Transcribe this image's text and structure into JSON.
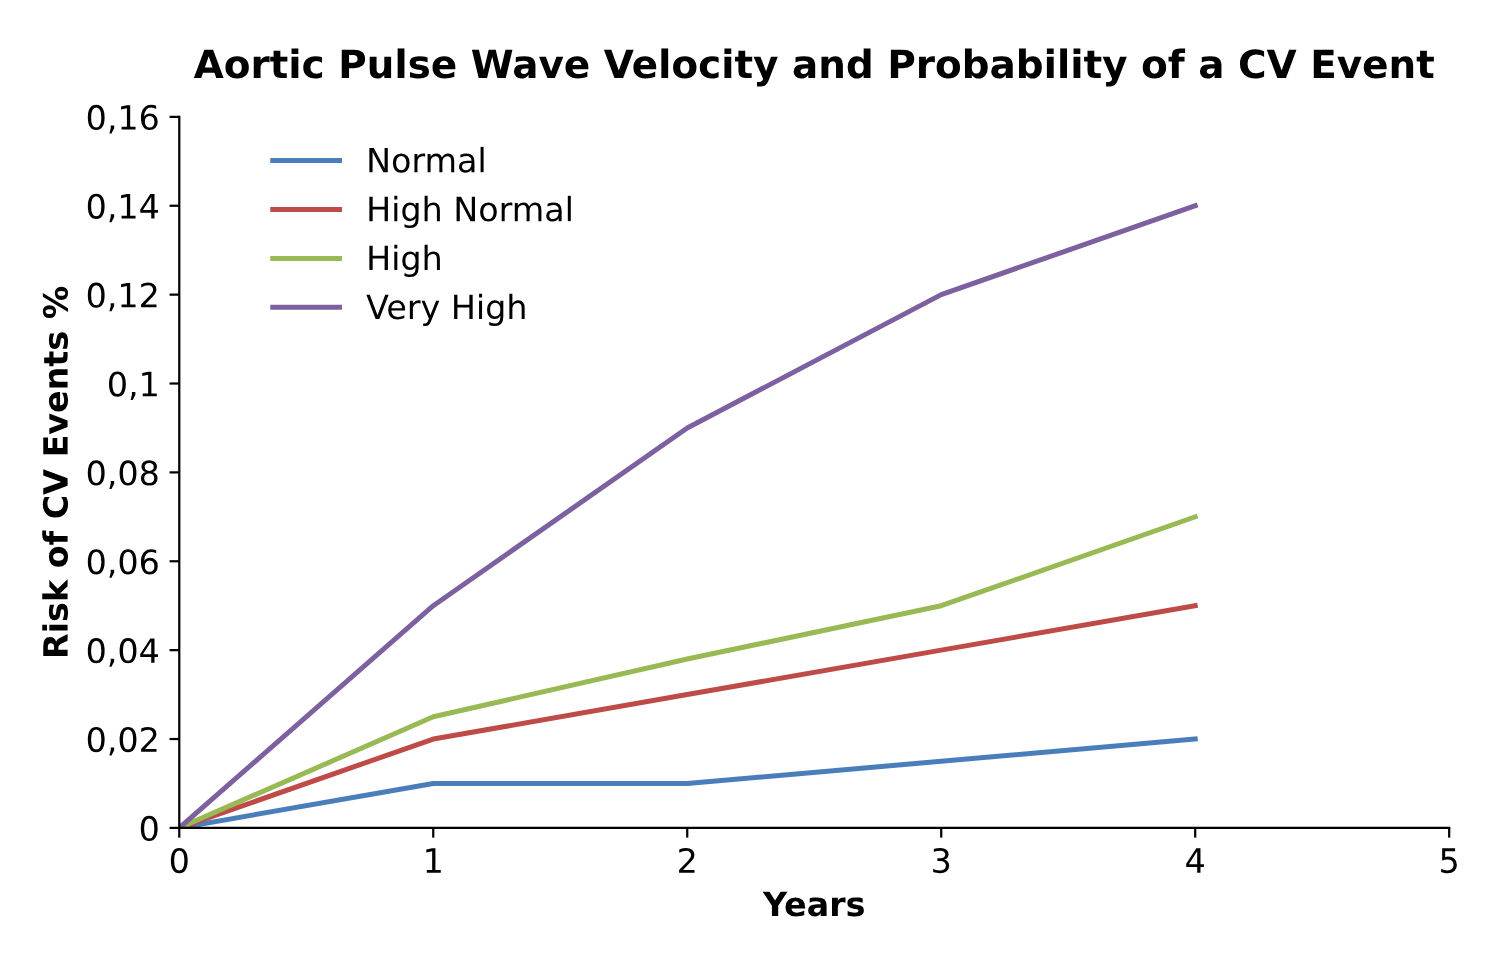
{
  "chart_data": {
    "type": "line",
    "title": "Aortic Pulse Wave Velocity and Probability of a CV Event",
    "xlabel": "Years",
    "ylabel": "Risk of CV Events %",
    "x": [
      0,
      1,
      2,
      3,
      4
    ],
    "series": [
      {
        "name": "Normal",
        "color": "#4a7ebb",
        "values": [
          0,
          0.01,
          0.01,
          0.015,
          0.02
        ]
      },
      {
        "name": "High Normal",
        "color": "#be4b48",
        "values": [
          0,
          0.02,
          0.03,
          0.04,
          0.05
        ]
      },
      {
        "name": "High",
        "color": "#98b954",
        "values": [
          0,
          0.025,
          0.038,
          0.05,
          0.07
        ]
      },
      {
        "name": "Very High",
        "color": "#7d60a0",
        "values": [
          0,
          0.05,
          0.09,
          0.12,
          0.14
        ]
      }
    ],
    "xlim": [
      0,
      5
    ],
    "xticks": [
      0,
      1,
      2,
      3,
      4,
      5
    ],
    "ylim": [
      0,
      0.16
    ],
    "yticks": [
      0,
      {
        "value": 0.02,
        "label": "0,02"
      },
      {
        "value": 0.04,
        "label": "0,04"
      },
      {
        "value": 0.06,
        "label": "0,06"
      },
      {
        "value": 0.08,
        "label": "0,08"
      },
      {
        "value": 0.1,
        "label": "0,1"
      },
      {
        "value": 0.12,
        "label": "0,12"
      },
      {
        "value": 0.14,
        "label": "0,14"
      },
      {
        "value": 0.16,
        "label": "0,16"
      }
    ],
    "grid": false,
    "legend": "top left",
    "marker": "none",
    "line_style": "solid"
  }
}
